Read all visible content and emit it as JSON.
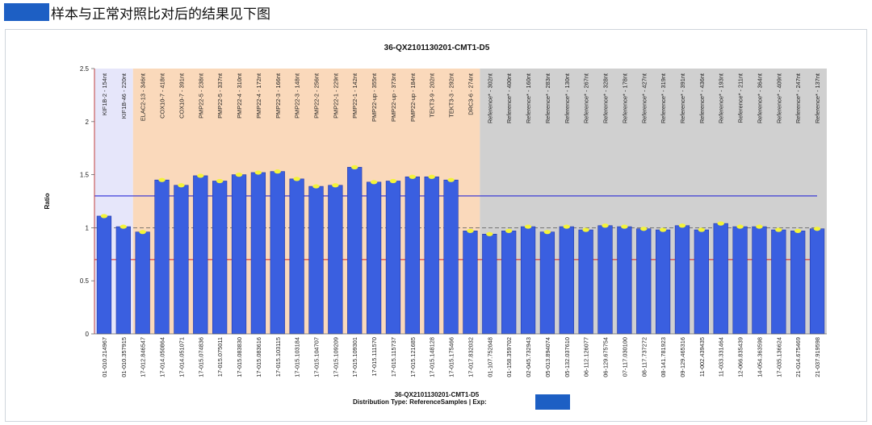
{
  "header": {
    "title": "样本与正常对照比对后的结果见下图",
    "bar_color": "#1d5fc4"
  },
  "chart_data": {
    "type": "bar",
    "title": "36-QX2101130201-CMT1-D5",
    "subtitle_line1": "36-QX2101130201-CMT1-D5",
    "subtitle_line2": "Distribution Type: ReferenceSamples | Exp:",
    "ylabel": "Ratio",
    "xlabel": "",
    "ylim": [
      0,
      2.5
    ],
    "yticks": [
      0,
      0.5,
      1,
      1.5,
      2,
      2.5
    ],
    "ytick_labels": [
      "0",
      "0.5",
      "1",
      "1.5",
      "2",
      "2.5"
    ],
    "thresholds": {
      "upper": 1.3,
      "normal": 1.0,
      "lower": 0.7,
      "upper_color": "#2b2bd6",
      "normal_color": "#555555",
      "lower_color": "#d02020"
    },
    "regions": [
      {
        "name": "KIF1B",
        "start": 0,
        "end": 1,
        "color": "#e6e6fa"
      },
      {
        "name": "targets",
        "start": 2,
        "end": 19,
        "color": "#fad9bb"
      },
      {
        "name": "Reference",
        "start": 20,
        "end": 37,
        "color": "#d0d0d0"
      }
    ],
    "bar_color": "#3a5fe0",
    "marker_color": "#f3f33a",
    "categories": [
      "01-010.214967",
      "01-010.357915",
      "17-012.846547",
      "17-014.050864",
      "17-014.051071",
      "17-015.074836",
      "17-015.075011",
      "17-015.083830",
      "17-015.083616",
      "17-015.103115",
      "17-015.103184",
      "17-015.104707",
      "17-015.109209",
      "17-015.109301",
      "17-015.111570",
      "17-015.115737",
      "17-015.121685",
      "17-015.148128",
      "17-015.175466",
      "17-017.832032",
      "01-107.752048",
      "01-158.359702",
      "02-045.732943",
      "05-013.894074",
      "05-132.037610",
      "06-112.126077",
      "06-129.675754",
      "07-117.030100",
      "08-117.737272",
      "08-141.781923",
      "09-129.465316",
      "11-002.439435",
      "11-033.331464",
      "12-066.835439",
      "14-054.363598",
      "17-035.136624",
      "21-014.675469",
      "21-037.919598"
    ],
    "top_labels": [
      "KIF1B-2 - 154nt",
      "KIF1B-46 - 220nt",
      "ELAC2-13 - 346nt",
      "COX10-7 - 418nt",
      "COX10-7 - 391nt",
      "PMP22-5 - 238nt",
      "PMP22-5 - 337nt",
      "PMP22-4 - 310nt",
      "PMP22-4 - 172nt",
      "PMP22-3 - 166nt",
      "PMP22-3 - 148nt",
      "PMP22-2 - 256nt",
      "PMP22-1 - 229nt",
      "PMP22-1 - 142nt",
      "PMP22-up - 355nt",
      "PMP22-up - 373nt",
      "PMP22-up - 184nt",
      "TEKT3-9 - 202nt",
      "TEKT3-3 - 292nt",
      "DRC3-6 - 274nt",
      "Reference* - 302nt",
      "Reference* - 400nt",
      "Reference* - 160nt",
      "Reference* - 283nt",
      "Reference* - 130nt",
      "Reference* - 267nt",
      "Reference* - 328nt",
      "Reference* - 178nt",
      "Reference* - 427nt",
      "Reference* - 319nt",
      "Reference* - 391nt",
      "Reference* - 436nt",
      "Reference* - 193nt",
      "Reference* - 211nt",
      "Reference* - 364nt",
      "Reference* - 409nt",
      "Reference* - 247nt",
      "Reference* - 137nt"
    ],
    "values": [
      1.11,
      1.01,
      0.96,
      1.45,
      1.4,
      1.49,
      1.44,
      1.5,
      1.52,
      1.53,
      1.46,
      1.39,
      1.4,
      1.57,
      1.43,
      1.44,
      1.48,
      1.48,
      1.45,
      0.97,
      0.94,
      0.97,
      1.01,
      0.96,
      1.01,
      0.98,
      1.02,
      1.01,
      0.99,
      0.98,
      1.02,
      0.98,
      1.04,
      1.01,
      1.01,
      0.98,
      0.97,
      0.99
    ]
  }
}
